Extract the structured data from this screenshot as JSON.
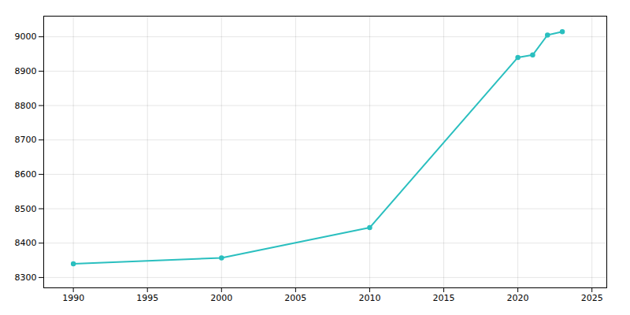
{
  "chart_data": {
    "type": "line",
    "x": [
      1990,
      2000,
      2010,
      2020,
      2021,
      2022,
      2023
    ],
    "values": [
      8340,
      8357,
      8445,
      8940,
      8947,
      9005,
      9015
    ],
    "color": "#2abfbf",
    "marker": "circle",
    "xlim": [
      1988,
      2026
    ],
    "ylim": [
      8270,
      9060
    ],
    "xticks": [
      1990,
      1995,
      2000,
      2005,
      2010,
      2015,
      2020,
      2025
    ],
    "yticks": [
      8300,
      8400,
      8500,
      8600,
      8700,
      8800,
      8900,
      9000
    ],
    "grid": true
  }
}
